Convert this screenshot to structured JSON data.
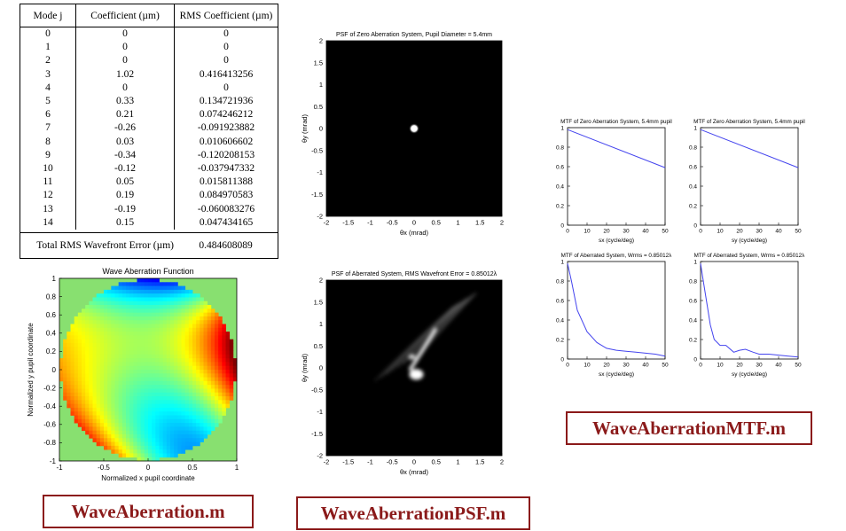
{
  "table": {
    "headers": [
      "Mode j",
      "Coefficient (µm)",
      "RMS Coefficient (µm)"
    ],
    "rows": [
      [
        "0",
        "0",
        "0"
      ],
      [
        "1",
        "0",
        "0"
      ],
      [
        "2",
        "0",
        "0"
      ],
      [
        "3",
        "1.02",
        "0.416413256"
      ],
      [
        "4",
        "0",
        "0"
      ],
      [
        "5",
        "0.33",
        "0.134721936"
      ],
      [
        "6",
        "0.21",
        "0.074246212"
      ],
      [
        "7",
        "-0.26",
        "-0.091923882"
      ],
      [
        "8",
        "0.03",
        "0.010606602"
      ],
      [
        "9",
        "-0.34",
        "-0.120208153"
      ],
      [
        "10",
        "-0.12",
        "-0.037947332"
      ],
      [
        "11",
        "0.05",
        "0.015811388"
      ],
      [
        "12",
        "0.19",
        "0.084970583"
      ],
      [
        "13",
        "-0.19",
        "-0.060083276"
      ],
      [
        "14",
        "0.15",
        "0.047434165"
      ]
    ],
    "total_label": "Total RMS Wavefront Error (µm)",
    "total_value": "0.484608089"
  },
  "scripts": {
    "wave_aberration": "WaveAberration.m",
    "wave_aberration_psf": "WaveAberrationPSF.m",
    "wave_aberration_mtf": "WaveAberrationMTF.m"
  },
  "chart_data": [
    {
      "id": "wave-aberration",
      "type": "heatmap",
      "title": "Wave Aberration Function",
      "xlabel": "Normalized x pupil coordinate",
      "ylabel": "Normalized y pupil coordinate",
      "xlim": [
        -1,
        1
      ],
      "ylim": [
        -1,
        1
      ],
      "xticks": [
        "-1",
        "-0.5",
        "0",
        "0.5",
        "1"
      ],
      "yticks": [
        "1",
        "0.8",
        "0.6",
        "0.4",
        "0.2",
        "0",
        "-0.2",
        "-0.4",
        "-0.6",
        "-0.8",
        "-1"
      ],
      "colormap": "jet",
      "background": "#88e070"
    },
    {
      "id": "psf-zero",
      "type": "heatmap",
      "title": "PSF of Zero Aberration System, Pupil Diameter = 5.4mm",
      "xlabel": "θx (mrad)",
      "ylabel": "θy (mrad)",
      "xlim": [
        -2,
        2
      ],
      "ylim": [
        -2,
        2
      ],
      "xticks": [
        "-2",
        "-1.5",
        "-1",
        "-0.5",
        "0",
        "0.5",
        "1",
        "1.5",
        "2"
      ],
      "yticks": [
        "2",
        "1.5",
        "1",
        "0.5",
        "0",
        "-0.5",
        "-1",
        "-1.5",
        "-2"
      ]
    },
    {
      "id": "psf-aberrated",
      "type": "heatmap",
      "title": "PSF of Aberrated System, RMS Wavefront Error = 0.85012λ",
      "xlabel": "θx (mrad)",
      "ylabel": "θy (mrad)",
      "xlim": [
        -2,
        2
      ],
      "ylim": [
        -2,
        2
      ],
      "xticks": [
        "-2",
        "-1.5",
        "-1",
        "-0.5",
        "0",
        "0.5",
        "1",
        "1.5",
        "2"
      ],
      "yticks": [
        "2",
        "1.5",
        "1",
        "0.5",
        "0",
        "-0.5",
        "-1",
        "-1.5",
        "-2"
      ]
    },
    {
      "id": "mtf-zero-x",
      "type": "line",
      "title": "MTF of Zero Aberration System, 5.4mm pupil",
      "xlabel": "sx (cycle/deg)",
      "xlim": [
        0,
        50
      ],
      "ylim": [
        0,
        1
      ],
      "xticks": [
        "0",
        "10",
        "20",
        "30",
        "40",
        "50"
      ],
      "yticks": [
        "1",
        "0.8",
        "0.6",
        "0.4",
        "0.2",
        "0"
      ],
      "x": [
        0,
        50
      ],
      "y": [
        0.98,
        0.59
      ]
    },
    {
      "id": "mtf-zero-y",
      "type": "line",
      "title": "MTF of Zero Aberration System, 5.4mm pupil",
      "xlabel": "sy (cycle/deg)",
      "xlim": [
        0,
        50
      ],
      "ylim": [
        0,
        1
      ],
      "xticks": [
        "0",
        "10",
        "20",
        "30",
        "40",
        "50"
      ],
      "yticks": [
        "1",
        "0.8",
        "0.6",
        "0.4",
        "0.2",
        "0"
      ],
      "x": [
        0,
        50
      ],
      "y": [
        0.98,
        0.59
      ]
    },
    {
      "id": "mtf-aberrated-x",
      "type": "line",
      "title": "MTF of Aberrated System, Wrms = 0.85012λ",
      "xlabel": "sx (cycle/deg)",
      "xlim": [
        0,
        50
      ],
      "ylim": [
        0,
        1
      ],
      "xticks": [
        "0",
        "10",
        "20",
        "30",
        "40",
        "50"
      ],
      "yticks": [
        "1",
        "0.8",
        "0.6",
        "0.4",
        "0.2",
        "0"
      ],
      "x": [
        0,
        2,
        5,
        10,
        15,
        20,
        25,
        30,
        35,
        40,
        45,
        50
      ],
      "y": [
        0.98,
        0.8,
        0.5,
        0.28,
        0.17,
        0.11,
        0.09,
        0.08,
        0.07,
        0.06,
        0.05,
        0.03
      ]
    },
    {
      "id": "mtf-aberrated-y",
      "type": "line",
      "title": "MTF of Aberrated System, Wrms = 0.85012λ",
      "xlabel": "sy (cycle/deg)",
      "xlim": [
        0,
        50
      ],
      "ylim": [
        0,
        1
      ],
      "xticks": [
        "0",
        "10",
        "20",
        "30",
        "40",
        "50"
      ],
      "yticks": [
        "1",
        "0.8",
        "0.6",
        "0.4",
        "0.2",
        "0"
      ],
      "x": [
        0,
        1,
        3,
        5,
        7,
        10,
        13,
        17,
        20,
        23,
        27,
        30,
        35,
        40,
        45,
        50
      ],
      "y": [
        0.98,
        0.85,
        0.6,
        0.35,
        0.2,
        0.14,
        0.14,
        0.07,
        0.09,
        0.1,
        0.07,
        0.05,
        0.05,
        0.04,
        0.03,
        0.02
      ]
    }
  ]
}
